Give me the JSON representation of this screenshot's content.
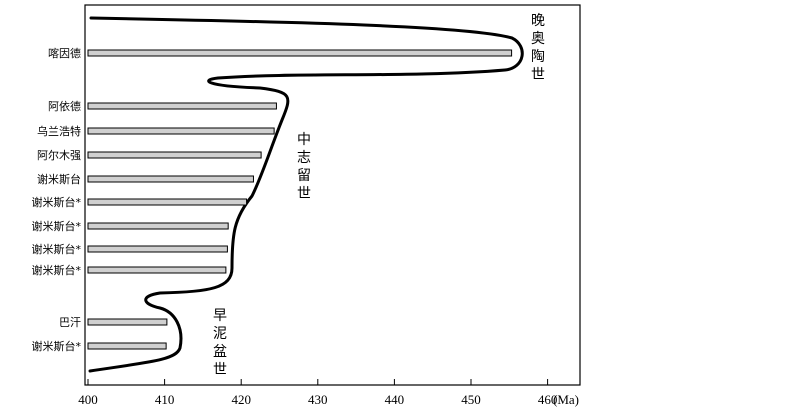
{
  "chart_data": {
    "type": "bar",
    "orientation": "horizontal",
    "xlabel": "(Ma)",
    "xlim": [
      400,
      461
    ],
    "xticks": [
      400,
      410,
      420,
      430,
      440,
      450,
      460
    ],
    "categories": [
      "喀因德",
      "阿依德",
      "乌兰浩特",
      "阿尔木强",
      "谢米斯台",
      "谢米斯台*",
      "谢米斯台*",
      "谢米斯台*",
      "谢米斯台*",
      "巴汗",
      "谢米斯台*"
    ],
    "values": [
      455.3,
      424.6,
      424.3,
      422.6,
      421.6,
      420.7,
      418.3,
      418.2,
      418.0,
      410.3,
      410.2
    ],
    "periods": [
      {
        "label": "晚奥陶世"
      },
      {
        "label": "中志留世"
      },
      {
        "label": "早泥盆世"
      }
    ],
    "grid": false,
    "legend": "none"
  }
}
